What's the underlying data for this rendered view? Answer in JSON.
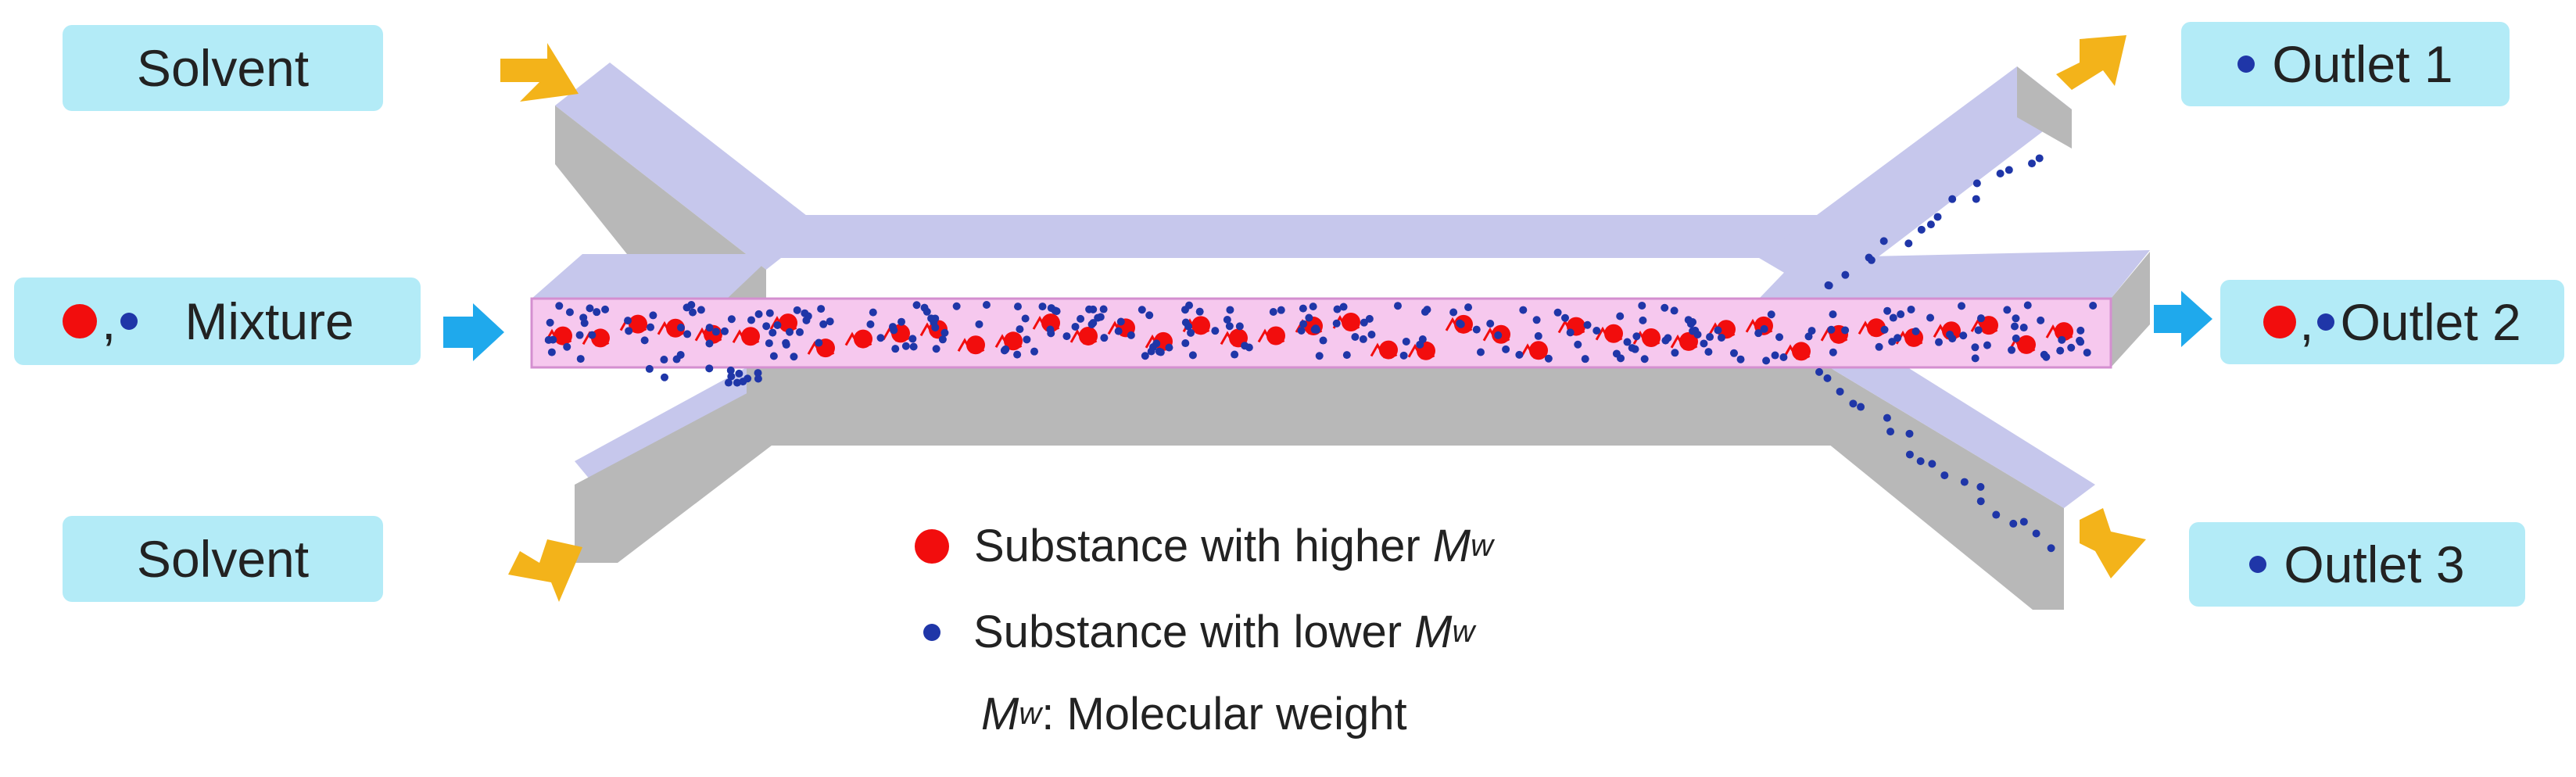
{
  "colors": {
    "label_bg": "#b3ebf7",
    "channel_top": "#c6c7ec",
    "channel_front": "#b8b8b8",
    "channel_inner": "#f6c8ee",
    "inlet_arrow": "#f3b31a",
    "flow_arrow": "#1fa9ec",
    "high_mw": "#f20d0d",
    "low_mw": "#1f36a8"
  },
  "labels": {
    "solvent_top": "Solvent",
    "mixture": "Mixture",
    "mixture_separator": ",",
    "solvent_bottom": "Solvent",
    "outlet1": "Outlet 1",
    "outlet2": "Outlet 2",
    "outlet2_separator": ",",
    "outlet3": "Outlet 3"
  },
  "legend": {
    "high_prefix": "Substance with higher ",
    "low_prefix": "Substance with lower ",
    "mw_symbol": "M",
    "mw_subscript": "w",
    "definition_suffix": ": Molecular weight"
  },
  "icons": [
    "solvent-inlet-arrow",
    "mixture-flow-arrow",
    "outlet-arrow",
    "high-mw-particle",
    "low-mw-particle",
    "polymer-chain"
  ]
}
